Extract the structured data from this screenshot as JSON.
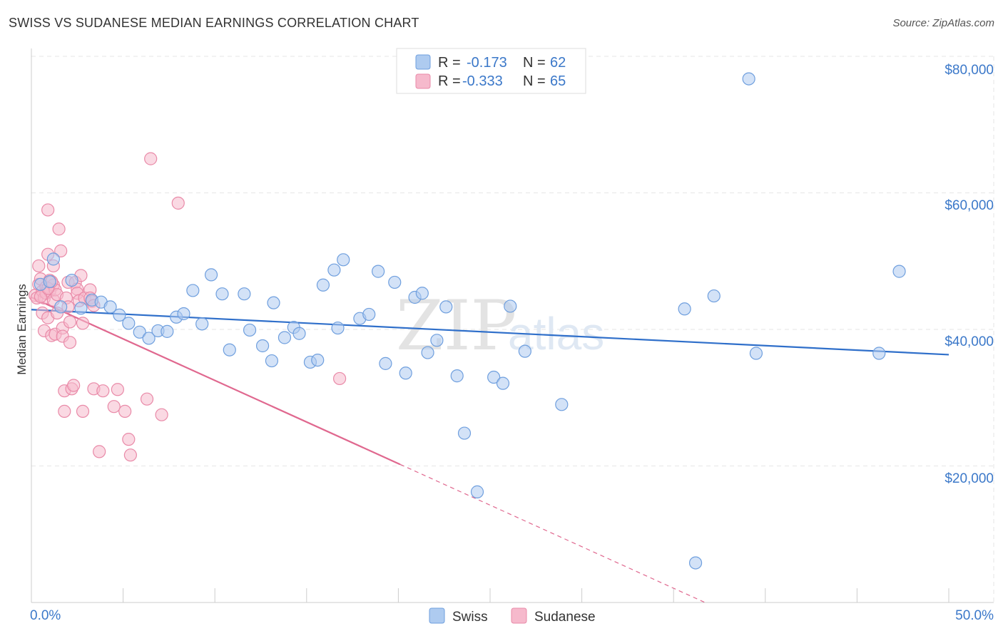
{
  "title": "SWISS VS SUDANESE MEDIAN EARNINGS CORRELATION CHART",
  "source": "Source: ZipAtlas.com",
  "colors": {
    "swiss_fill": "#aecbf0",
    "swiss_stroke": "#6f9fde",
    "swiss_line": "#2f6fca",
    "sudanese_fill": "#f6b9cc",
    "sudanese_stroke": "#e98aa8",
    "sudanese_line": "#e0688f",
    "axis_text": "#3b78c9",
    "grid": "#e6e6e6"
  },
  "legend": {
    "rows": [
      {
        "series": "Swiss",
        "r_label": "R =",
        "r_value": "-0.173",
        "n_label": "N =",
        "n_value": "62"
      },
      {
        "series": "Sudanese",
        "r_label": "R =",
        "r_value": "-0.333",
        "n_label": "N =",
        "n_value": "65"
      }
    ]
  },
  "watermark": {
    "zip": "ZIP",
    "atlas": "atlas"
  },
  "chart_data": {
    "type": "scatter",
    "title": "SWISS VS SUDANESE MEDIAN EARNINGS CORRELATION CHART",
    "xlabel": "",
    "ylabel": "Median Earnings",
    "xlim": [
      0,
      50
    ],
    "ylim": [
      0,
      80000
    ],
    "x_tick_labels": [
      "0.0%",
      "50.0%"
    ],
    "y_ticks": [
      20000,
      40000,
      60000,
      80000
    ],
    "y_tick_labels": [
      "$20,000",
      "$40,000",
      "$60,000",
      "$80,000"
    ],
    "grid": true,
    "legend_position": "top-center",
    "series": [
      {
        "name": "Swiss",
        "trend": {
          "x": [
            0,
            50
          ],
          "y": [
            42900,
            36300
          ],
          "solid_to": 50
        },
        "points": [
          [
            0.5,
            46600
          ],
          [
            1.0,
            47000
          ],
          [
            1.2,
            50300
          ],
          [
            1.6,
            43300
          ],
          [
            2.2,
            47200
          ],
          [
            2.7,
            43100
          ],
          [
            3.3,
            44300
          ],
          [
            3.8,
            44000
          ],
          [
            4.3,
            43300
          ],
          [
            4.8,
            42100
          ],
          [
            5.3,
            40900
          ],
          [
            5.9,
            39600
          ],
          [
            6.4,
            38700
          ],
          [
            6.9,
            39800
          ],
          [
            7.4,
            39700
          ],
          [
            7.9,
            41800
          ],
          [
            8.3,
            42300
          ],
          [
            8.8,
            45700
          ],
          [
            9.3,
            40800
          ],
          [
            9.8,
            48000
          ],
          [
            10.4,
            45200
          ],
          [
            10.8,
            37000
          ],
          [
            11.6,
            45200
          ],
          [
            11.9,
            39900
          ],
          [
            12.6,
            37600
          ],
          [
            13.1,
            35400
          ],
          [
            13.2,
            43900
          ],
          [
            13.8,
            38800
          ],
          [
            14.3,
            40300
          ],
          [
            14.6,
            39400
          ],
          [
            15.2,
            35200
          ],
          [
            15.6,
            35500
          ],
          [
            15.9,
            46500
          ],
          [
            16.5,
            48700
          ],
          [
            16.7,
            40200
          ],
          [
            17.0,
            50200
          ],
          [
            17.9,
            41600
          ],
          [
            18.4,
            42200
          ],
          [
            18.9,
            48500
          ],
          [
            19.3,
            35000
          ],
          [
            19.8,
            46900
          ],
          [
            20.4,
            33600
          ],
          [
            20.9,
            44700
          ],
          [
            21.3,
            45300
          ],
          [
            21.6,
            36600
          ],
          [
            22.1,
            38400
          ],
          [
            22.6,
            43300
          ],
          [
            23.2,
            33200
          ],
          [
            23.6,
            24800
          ],
          [
            24.3,
            16200
          ],
          [
            25.2,
            33000
          ],
          [
            25.7,
            32100
          ],
          [
            26.1,
            43400
          ],
          [
            26.9,
            36800
          ],
          [
            28.9,
            29000
          ],
          [
            35.6,
            43000
          ],
          [
            36.2,
            5800
          ],
          [
            37.2,
            44900
          ],
          [
            39.1,
            76700
          ],
          [
            39.5,
            36500
          ],
          [
            46.2,
            36500
          ],
          [
            47.3,
            48500
          ]
        ]
      },
      {
        "name": "Sudanese",
        "trend": {
          "x": [
            0,
            40
          ],
          "y": [
            44700,
            -4000
          ],
          "solid_to": 20.1
        },
        "points": [
          [
            0.2,
            45000
          ],
          [
            0.3,
            44600
          ],
          [
            0.4,
            46600
          ],
          [
            0.4,
            49300
          ],
          [
            0.5,
            47400
          ],
          [
            0.6,
            45600
          ],
          [
            0.6,
            42400
          ],
          [
            0.7,
            44600
          ],
          [
            0.7,
            39800
          ],
          [
            0.8,
            46200
          ],
          [
            0.8,
            45300
          ],
          [
            0.9,
            51000
          ],
          [
            0.9,
            41700
          ],
          [
            0.9,
            57500
          ],
          [
            1.0,
            45600
          ],
          [
            1.0,
            47200
          ],
          [
            1.1,
            39100
          ],
          [
            1.2,
            44300
          ],
          [
            1.2,
            46500
          ],
          [
            1.2,
            49300
          ],
          [
            1.3,
            45800
          ],
          [
            1.3,
            39300
          ],
          [
            1.4,
            42400
          ],
          [
            1.4,
            45100
          ],
          [
            1.5,
            54700
          ],
          [
            1.6,
            51500
          ],
          [
            1.7,
            40200
          ],
          [
            1.7,
            39000
          ],
          [
            1.8,
            28000
          ],
          [
            1.8,
            31000
          ],
          [
            1.9,
            44600
          ],
          [
            2.0,
            46900
          ],
          [
            2.0,
            43300
          ],
          [
            2.1,
            41100
          ],
          [
            2.1,
            38100
          ],
          [
            2.2,
            31300
          ],
          [
            2.3,
            31800
          ],
          [
            2.4,
            46900
          ],
          [
            2.5,
            45900
          ],
          [
            2.5,
            45300
          ],
          [
            2.6,
            44200
          ],
          [
            2.7,
            47900
          ],
          [
            2.8,
            28000
          ],
          [
            2.8,
            40900
          ],
          [
            2.9,
            44600
          ],
          [
            3.2,
            45800
          ],
          [
            3.2,
            44600
          ],
          [
            3.3,
            44100
          ],
          [
            3.4,
            43500
          ],
          [
            3.4,
            31300
          ],
          [
            3.7,
            22100
          ],
          [
            3.9,
            31000
          ],
          [
            4.5,
            28700
          ],
          [
            4.7,
            31200
          ],
          [
            5.1,
            28000
          ],
          [
            5.3,
            23900
          ],
          [
            5.4,
            21600
          ],
          [
            6.3,
            29800
          ],
          [
            6.5,
            65000
          ],
          [
            7.1,
            27500
          ],
          [
            8.0,
            58500
          ],
          [
            16.8,
            32800
          ],
          [
            0.5,
            44800
          ],
          [
            0.9,
            46000
          ],
          [
            1.1,
            47000
          ]
        ]
      }
    ]
  }
}
